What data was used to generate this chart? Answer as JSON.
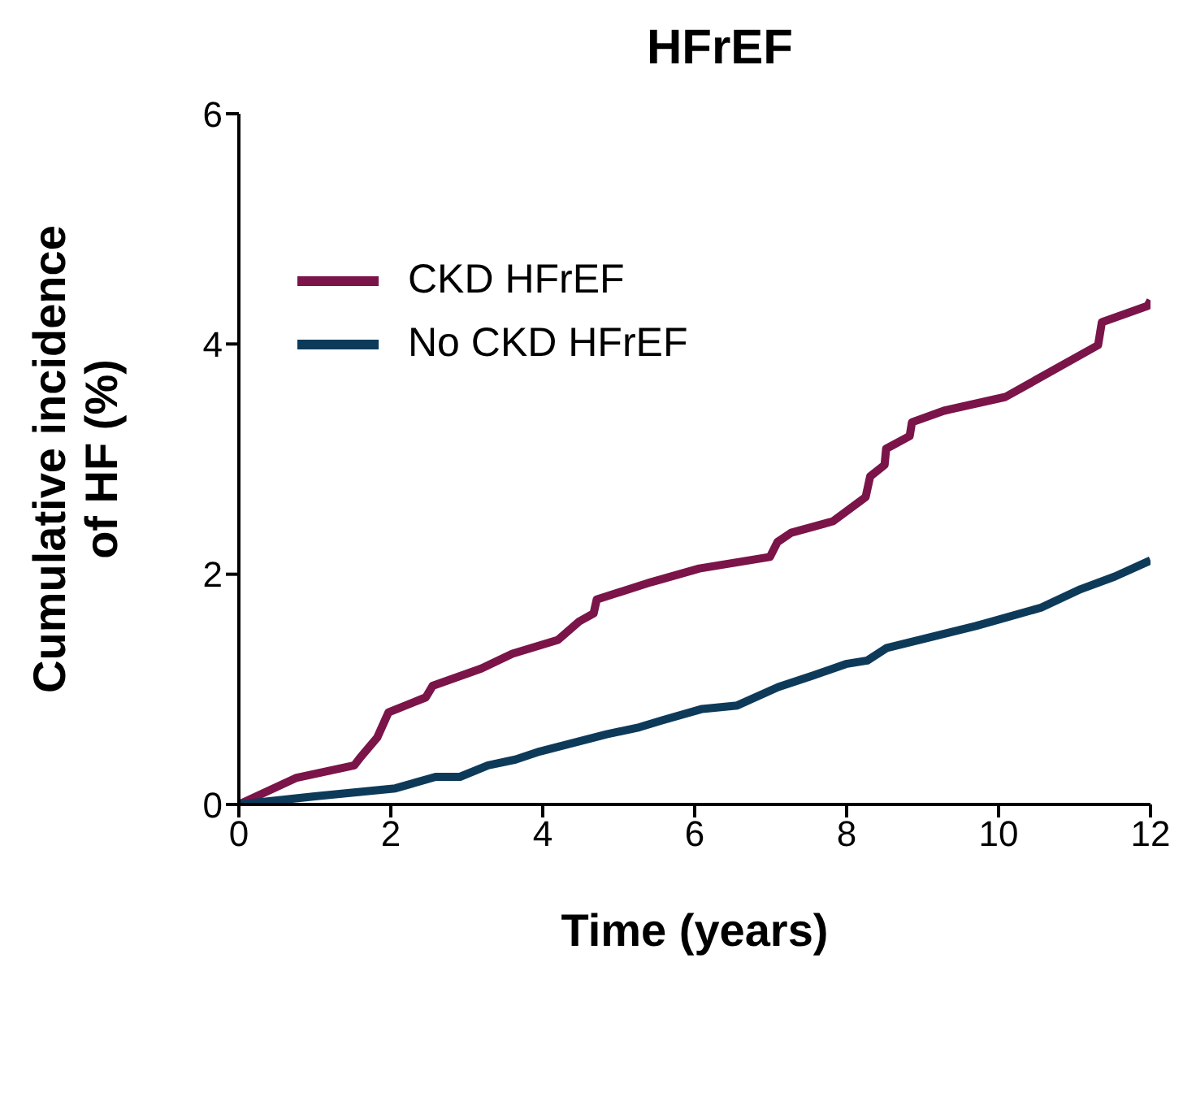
{
  "chart_data": {
    "type": "line",
    "title": "HFrEF",
    "xlabel": "Time (years)",
    "ylabel": "Cumulative incidence\nof HF (%)",
    "xlim": [
      0,
      12
    ],
    "xticks": [
      0,
      2,
      4,
      6,
      8,
      10,
      12
    ],
    "ylim": [
      0,
      6
    ],
    "yticks": [
      0,
      2,
      4,
      6
    ],
    "grid": false,
    "legend": "top left",
    "marker": "none",
    "line_style": "solid",
    "series": [
      {
        "name": "CKD HFrEF",
        "color": "#7b1448",
        "x": [
          0,
          0.75,
          1.52,
          1.6,
          1.82,
          1.97,
          2.46,
          2.55,
          3.19,
          3.6,
          4.2,
          4.48,
          4.67,
          4.71,
          5.42,
          6.06,
          6.99,
          7.09,
          7.27,
          7.82,
          8.25,
          8.31,
          8.5,
          8.52,
          8.83,
          8.86,
          9.28,
          10.09,
          11.31,
          11.36,
          11.96,
          12
        ],
        "values": [
          0,
          0.23,
          0.34,
          0.41,
          0.58,
          0.8,
          0.93,
          1.03,
          1.18,
          1.31,
          1.43,
          1.59,
          1.66,
          1.78,
          1.93,
          2.05,
          2.15,
          2.28,
          2.36,
          2.46,
          2.67,
          2.85,
          2.95,
          3.09,
          3.2,
          3.32,
          3.42,
          3.54,
          3.99,
          4.19,
          4.33,
          4.38
        ]
      },
      {
        "name": "No CKD HFrEF",
        "color": "#0e3a5a",
        "x": [
          0,
          1,
          2.06,
          2.59,
          2.91,
          3.28,
          3.64,
          3.96,
          4.84,
          5.27,
          5.57,
          6.1,
          6.56,
          7.1,
          7.56,
          7.99,
          8.27,
          8.53,
          9.7,
          10.56,
          11.08,
          11.53,
          12
        ],
        "values": [
          0,
          0.07,
          0.14,
          0.24,
          0.24,
          0.34,
          0.39,
          0.46,
          0.61,
          0.67,
          0.73,
          0.83,
          0.86,
          1.02,
          1.12,
          1.22,
          1.25,
          1.36,
          1.55,
          1.71,
          1.87,
          1.98,
          2.12
        ]
      }
    ]
  }
}
